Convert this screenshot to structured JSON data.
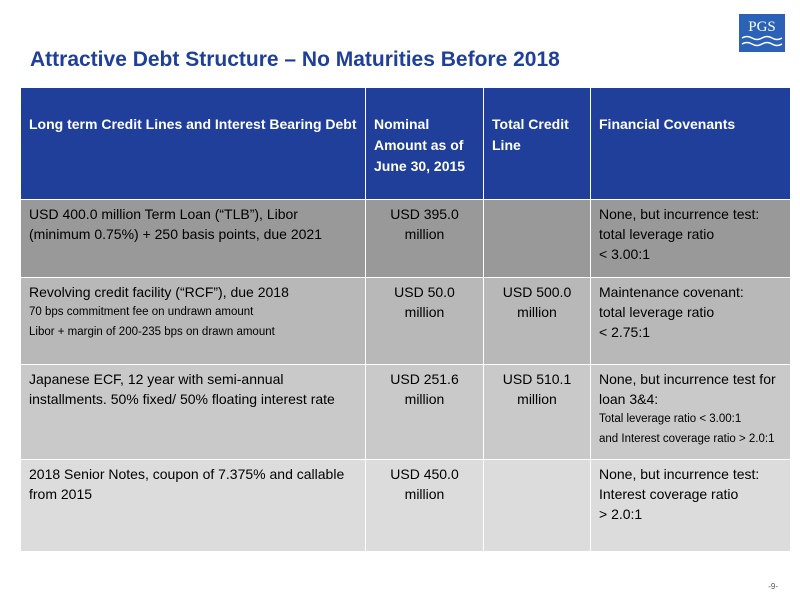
{
  "header": {
    "title": "Attractive Debt Structure – No Maturities Before 2018",
    "logo": "PGS"
  },
  "table": {
    "columns": [
      "Long term Credit Lines and Interest Bearing Debt",
      "Nominal Amount as of June 30, 2015",
      "Total Credit Line",
      "Financial Covenants"
    ],
    "rows": [
      [
        [
          "USD 400.0 million Term Loan (“TLB”), Libor (minimum 0.75%) + 250 basis points, due 2021"
        ],
        [
          "USD 395.0 million"
        ],
        [],
        [
          "None, but incurrence test:",
          "total leverage ratio",
          "< 3.00:1"
        ]
      ],
      [
        [
          "Revolving credit facility (“RCF”), due 2018",
          "70 bps commitment fee on undrawn amount",
          "Libor + margin of 200-235 bps on drawn amount"
        ],
        [
          "USD 50.0 million"
        ],
        [
          "USD 500.0 million"
        ],
        [
          "Maintenance covenant:",
          "total leverage ratio",
          "< 2.75:1"
        ]
      ],
      [
        [
          "Japanese ECF, 12 year with semi-annual installments. 50% fixed/ 50% floating interest rate"
        ],
        [
          "USD 251.6 million"
        ],
        [
          "USD 510.1 million"
        ],
        [
          "None, but incurrence test for loan 3&4:",
          "Total leverage ratio < 3.00:1",
          "and Interest coverage ratio > 2.0:1"
        ]
      ],
      [
        [
          "2018 Senior Notes, coupon of 7.375% and callable from 2015"
        ],
        [
          "USD 450.0 million"
        ],
        [],
        [
          "None, but incurrence test:",
          "Interest coverage ratio",
          "> 2.0:1"
        ]
      ]
    ]
  },
  "footer": {
    "page": "-9-"
  }
}
